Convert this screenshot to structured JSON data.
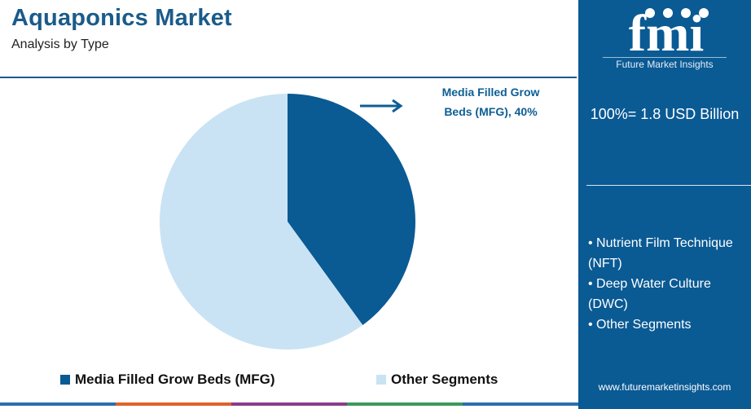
{
  "header": {
    "title": "Aquaponics Market",
    "subtitle": "Analysis by Type"
  },
  "callout": {
    "line1": "Media Filled Grow",
    "line2": "Beds (MFG), 40%"
  },
  "chart_data": {
    "type": "pie",
    "title": "Aquaponics Market",
    "categories": [
      "Media Filled Grow Beds (MFG)",
      "Other Segments"
    ],
    "values": [
      40,
      60
    ],
    "colors": [
      "#0a5a94",
      "#c9e3f4"
    ],
    "legend_position": "bottom"
  },
  "legend": {
    "items": [
      "Media Filled Grow Beds (MFG)",
      "Other Segments"
    ]
  },
  "sidebar": {
    "logo_text": "fmi",
    "logo_subtitle": "Future Market Insights",
    "total": "100%= 1.8 USD Billion",
    "other_segments": [
      "• Nutrient Film Technique (NFT)",
      "• Deep Water Culture (DWC)",
      "• Other Segments"
    ],
    "url": "www.futuremarketinsights.com"
  },
  "colors": {
    "brand_blue": "#0a5a94",
    "light_blue": "#c9e3f4",
    "title_blue": "#1a5b8a",
    "bar_colors": [
      "#2a6fb0",
      "#e0612a",
      "#8a3c8c",
      "#3a9a5a",
      "#2a6fb0"
    ]
  }
}
